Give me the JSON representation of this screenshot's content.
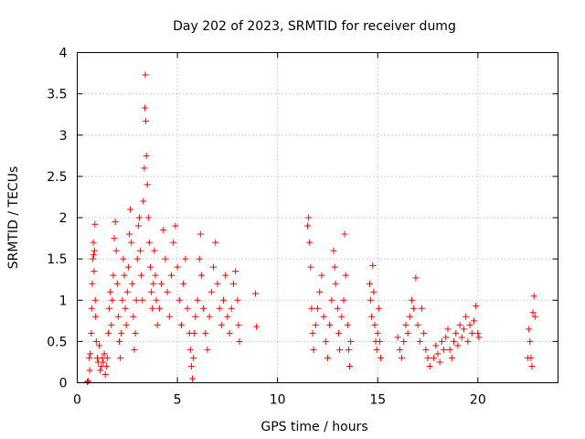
{
  "chart_data": {
    "type": "scatter",
    "title": "Day 202 of 2023, SRMTID for receiver dumg",
    "xlabel": "GPS time / hours",
    "ylabel": "SRMTID / TECUs",
    "xlim": [
      0,
      24
    ],
    "ylim": [
      0,
      4
    ],
    "xticks": [
      0,
      5,
      10,
      15,
      20
    ],
    "xtick_labels": [
      "0",
      "5",
      "10",
      "15",
      "20"
    ],
    "yticks": [
      0,
      0.5,
      1,
      1.5,
      2,
      2.5,
      3,
      3.5,
      4
    ],
    "ytick_labels": [
      "0",
      "0.5",
      "1",
      "1.5",
      "2",
      "2.5",
      "3",
      "3.5",
      "4"
    ],
    "grid": true,
    "marker": "+",
    "color": "#ff0000",
    "series": [
      {
        "name": "SRMTID",
        "points": [
          [
            0.5,
            0.01
          ],
          [
            0.55,
            0.02
          ],
          [
            0.6,
            0.3
          ],
          [
            0.62,
            0.15
          ],
          [
            0.65,
            0.35
          ],
          [
            0.7,
            0.6
          ],
          [
            0.72,
            0.9
          ],
          [
            0.75,
            1.2
          ],
          [
            0.78,
            1.5
          ],
          [
            0.8,
            1.7
          ],
          [
            0.82,
            1.55
          ],
          [
            0.84,
            1.35
          ],
          [
            0.86,
            1.6
          ],
          [
            0.88,
            1.92
          ],
          [
            0.9,
            1.0
          ],
          [
            0.92,
            0.8
          ],
          [
            0.95,
            0.5
          ],
          [
            1.0,
            0.3
          ],
          [
            1.05,
            0.25
          ],
          [
            1.1,
            0.45
          ],
          [
            1.15,
            0.15
          ],
          [
            1.2,
            0.2
          ],
          [
            1.25,
            0.3
          ],
          [
            1.3,
            0.25
          ],
          [
            1.35,
            0.35
          ],
          [
            1.4,
            0.1
          ],
          [
            1.45,
            0.2
          ],
          [
            1.5,
            0.3
          ],
          [
            1.55,
            0.6
          ],
          [
            1.6,
            0.9
          ],
          [
            1.65,
            1.1
          ],
          [
            1.7,
            0.7
          ],
          [
            1.75,
            1.0
          ],
          [
            1.8,
            1.3
          ],
          [
            1.85,
            1.75
          ],
          [
            1.9,
            1.95
          ],
          [
            1.95,
            1.6
          ],
          [
            2.0,
            1.2
          ],
          [
            2.05,
            0.8
          ],
          [
            2.1,
            0.5
          ],
          [
            2.15,
            0.3
          ],
          [
            2.2,
            0.6
          ],
          [
            2.25,
            1.0
          ],
          [
            2.3,
            1.5
          ],
          [
            2.35,
            1.3
          ],
          [
            2.4,
            0.9
          ],
          [
            2.45,
            0.7
          ],
          [
            2.5,
            1.1
          ],
          [
            2.55,
            1.4
          ],
          [
            2.6,
            1.8
          ],
          [
            2.65,
            2.1
          ],
          [
            2.7,
            1.7
          ],
          [
            2.75,
            1.2
          ],
          [
            2.8,
            0.8
          ],
          [
            2.85,
            0.4
          ],
          [
            2.9,
            0.6
          ],
          [
            2.95,
            1.0
          ],
          [
            3.0,
            1.5
          ],
          [
            3.05,
            1.9
          ],
          [
            3.1,
            2.0
          ],
          [
            3.15,
            1.6
          ],
          [
            3.2,
            1.3
          ],
          [
            3.25,
            1.0
          ],
          [
            3.3,
            2.2
          ],
          [
            3.35,
            2.6
          ],
          [
            3.38,
            3.33
          ],
          [
            3.4,
            3.73
          ],
          [
            3.42,
            3.17
          ],
          [
            3.45,
            2.75
          ],
          [
            3.5,
            2.4
          ],
          [
            3.55,
            2.0
          ],
          [
            3.6,
            1.7
          ],
          [
            3.65,
            1.4
          ],
          [
            3.7,
            1.1
          ],
          [
            3.75,
            0.9
          ],
          [
            3.8,
            1.2
          ],
          [
            3.85,
            1.6
          ],
          [
            3.9,
            1.3
          ],
          [
            3.95,
            1.0
          ],
          [
            4.0,
            0.7
          ],
          [
            4.1,
            0.9
          ],
          [
            4.2,
            1.2
          ],
          [
            4.3,
            1.85
          ],
          [
            4.4,
            1.5
          ],
          [
            4.5,
            1.1
          ],
          [
            4.6,
            0.8
          ],
          [
            4.7,
            1.3
          ],
          [
            4.8,
            1.7
          ],
          [
            4.9,
            1.9
          ],
          [
            5.0,
            1.4
          ],
          [
            5.1,
            1.0
          ],
          [
            5.2,
            0.7
          ],
          [
            5.3,
            1.2
          ],
          [
            5.4,
            1.5
          ],
          [
            5.5,
            0.9
          ],
          [
            5.6,
            0.6
          ],
          [
            5.65,
            0.4
          ],
          [
            5.7,
            0.2
          ],
          [
            5.75,
            0.05
          ],
          [
            5.8,
            0.3
          ],
          [
            5.85,
            0.6
          ],
          [
            5.9,
            0.8
          ],
          [
            6.0,
            1.0
          ],
          [
            6.1,
            1.5
          ],
          [
            6.15,
            1.8
          ],
          [
            6.2,
            1.3
          ],
          [
            6.3,
            0.9
          ],
          [
            6.4,
            0.6
          ],
          [
            6.5,
            0.4
          ],
          [
            6.6,
            0.8
          ],
          [
            6.7,
            1.1
          ],
          [
            6.8,
            1.4
          ],
          [
            6.9,
            1.7
          ],
          [
            7.0,
            1.2
          ],
          [
            7.1,
            0.9
          ],
          [
            7.2,
            0.7
          ],
          [
            7.3,
            1.0
          ],
          [
            7.4,
            1.3
          ],
          [
            7.5,
            0.8
          ],
          [
            7.6,
            0.6
          ],
          [
            7.7,
            0.9
          ],
          [
            7.8,
            1.2
          ],
          [
            7.9,
            1.35
          ],
          [
            8.0,
            1.0
          ],
          [
            8.05,
            0.7
          ],
          [
            8.1,
            0.5
          ],
          [
            8.9,
            1.08
          ],
          [
            8.95,
            0.68
          ],
          [
            11.5,
            1.9
          ],
          [
            11.55,
            2.0
          ],
          [
            11.6,
            1.7
          ],
          [
            11.65,
            1.4
          ],
          [
            11.7,
            0.9
          ],
          [
            11.75,
            0.6
          ],
          [
            11.8,
            0.4
          ],
          [
            11.9,
            0.7
          ],
          [
            12.0,
            0.9
          ],
          [
            12.1,
            1.1
          ],
          [
            12.2,
            1.3
          ],
          [
            12.3,
            0.8
          ],
          [
            12.4,
            0.5
          ],
          [
            12.5,
            0.3
          ],
          [
            12.6,
            0.7
          ],
          [
            12.7,
            1.0
          ],
          [
            12.8,
            1.6
          ],
          [
            12.85,
            1.4
          ],
          [
            12.9,
            1.2
          ],
          [
            13.0,
            0.9
          ],
          [
            13.05,
            0.6
          ],
          [
            13.1,
            0.4
          ],
          [
            13.2,
            0.8
          ],
          [
            13.3,
            1.0
          ],
          [
            13.35,
            1.8
          ],
          [
            13.4,
            1.3
          ],
          [
            13.5,
            0.7
          ],
          [
            13.55,
            0.4
          ],
          [
            13.6,
            0.2
          ],
          [
            13.65,
            0.5
          ],
          [
            14.6,
            1.2
          ],
          [
            14.65,
            1.0
          ],
          [
            14.7,
            0.8
          ],
          [
            14.75,
            1.42
          ],
          [
            14.8,
            1.1
          ],
          [
            14.85,
            0.7
          ],
          [
            14.9,
            0.5
          ],
          [
            14.95,
            0.4
          ],
          [
            15.0,
            0.6
          ],
          [
            15.05,
            0.9
          ],
          [
            15.1,
            0.5
          ],
          [
            15.15,
            0.3
          ],
          [
            16.0,
            0.55
          ],
          [
            16.1,
            0.4
          ],
          [
            16.2,
            0.3
          ],
          [
            16.3,
            0.5
          ],
          [
            16.4,
            0.7
          ],
          [
            16.5,
            0.6
          ],
          [
            16.6,
            0.8
          ],
          [
            16.7,
            1.0
          ],
          [
            16.8,
            0.9
          ],
          [
            16.9,
            1.27
          ],
          [
            17.0,
            0.7
          ],
          [
            17.1,
            0.5
          ],
          [
            17.2,
            0.9
          ],
          [
            17.3,
            0.6
          ],
          [
            17.4,
            0.4
          ],
          [
            17.5,
            0.3
          ],
          [
            17.6,
            0.2
          ],
          [
            17.8,
            0.3
          ],
          [
            17.9,
            0.45
          ],
          [
            18.0,
            0.35
          ],
          [
            18.1,
            0.25
          ],
          [
            18.2,
            0.5
          ],
          [
            18.3,
            0.4
          ],
          [
            18.4,
            0.55
          ],
          [
            18.5,
            0.65
          ],
          [
            18.6,
            0.4
          ],
          [
            18.7,
            0.3
          ],
          [
            18.8,
            0.5
          ],
          [
            18.9,
            0.6
          ],
          [
            19.0,
            0.45
          ],
          [
            19.1,
            0.7
          ],
          [
            19.2,
            0.55
          ],
          [
            19.3,
            0.65
          ],
          [
            19.4,
            0.8
          ],
          [
            19.5,
            0.5
          ],
          [
            19.6,
            0.7
          ],
          [
            19.7,
            0.6
          ],
          [
            19.8,
            0.75
          ],
          [
            19.9,
            0.93
          ],
          [
            20.0,
            0.6
          ],
          [
            20.05,
            0.55
          ],
          [
            22.5,
            0.3
          ],
          [
            22.55,
            0.65
          ],
          [
            22.6,
            0.5
          ],
          [
            22.65,
            0.3
          ],
          [
            22.7,
            0.2
          ],
          [
            22.75,
            0.85
          ],
          [
            22.8,
            1.05
          ],
          [
            22.85,
            0.8
          ]
        ]
      }
    ]
  }
}
